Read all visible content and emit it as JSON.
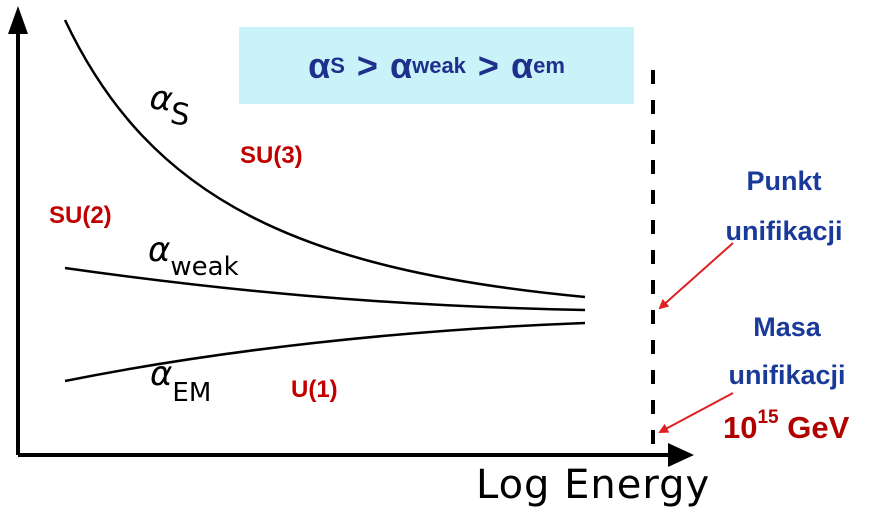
{
  "banner": {
    "alpha": "α",
    "s_sub": "S",
    "weak_sub": "weak",
    "em_sub": "em",
    "gt": ">"
  },
  "labels": {
    "su3": "SU(3)",
    "su2": "SU(2)",
    "u1": "U(1)",
    "punkt_line1": "Punkt",
    "punkt_line2": "unifikacji",
    "masa_line1": "Masa",
    "masa_line2": "unifikacji",
    "energy_base": "10",
    "energy_exp": "15",
    "energy_unit": "GeV"
  },
  "curves": {
    "alpha_symbol": "α",
    "s_label": "S",
    "weak_label": "weak",
    "em_label": "EM"
  },
  "axis": {
    "xlabel": "Log Energy"
  },
  "colors": {
    "red_label": "#c00000",
    "blue_label": "#1a3a9a",
    "banner_bg": "#c9f3f8",
    "arrow": "#e02020"
  }
}
